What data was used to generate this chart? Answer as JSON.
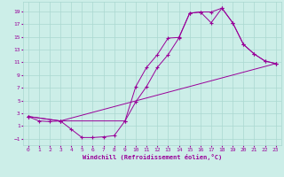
{
  "xlabel": "Windchill (Refroidissement éolien,°C)",
  "bg_color": "#cceee8",
  "grid_color": "#aad8d0",
  "line_color": "#990099",
  "xlim": [
    -0.5,
    23.5
  ],
  "ylim": [
    -2.0,
    20.5
  ],
  "xticks": [
    0,
    1,
    2,
    3,
    4,
    5,
    6,
    7,
    8,
    9,
    10,
    11,
    12,
    13,
    14,
    15,
    16,
    17,
    18,
    19,
    20,
    21,
    22,
    23
  ],
  "yticks": [
    -1,
    1,
    3,
    5,
    7,
    9,
    11,
    13,
    15,
    17,
    19
  ],
  "line1_x": [
    0,
    1,
    2,
    3,
    4,
    5,
    6,
    7,
    8,
    9,
    10,
    11,
    12,
    13,
    14,
    15,
    16,
    17,
    18,
    19,
    20,
    21,
    22,
    23
  ],
  "line1_y": [
    2.5,
    1.8,
    1.7,
    1.8,
    0.5,
    -0.8,
    -0.8,
    -0.7,
    -0.5,
    1.8,
    7.2,
    10.2,
    12.2,
    14.8,
    14.9,
    18.7,
    18.9,
    18.9,
    19.5,
    17.2,
    13.8,
    12.3,
    11.2,
    10.8
  ],
  "line2_x": [
    0,
    3,
    9,
    10,
    11,
    12,
    13,
    14,
    15,
    16,
    17,
    18,
    19,
    20,
    21,
    22,
    23
  ],
  "line2_y": [
    2.5,
    1.8,
    1.8,
    4.8,
    7.2,
    10.2,
    12.2,
    14.8,
    18.7,
    18.9,
    17.2,
    19.5,
    17.2,
    13.8,
    12.3,
    11.2,
    10.8
  ],
  "line3_x": [
    0,
    3,
    23
  ],
  "line3_y": [
    2.5,
    1.8,
    10.8
  ]
}
